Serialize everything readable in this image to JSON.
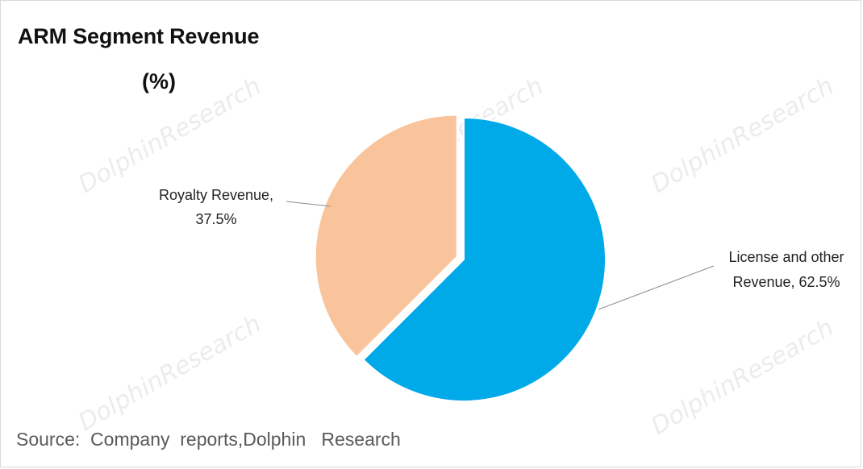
{
  "chart_data": {
    "type": "pie",
    "title": "ARM Segment Revenue",
    "subtitle": "(%)",
    "slices": [
      {
        "label_line1": "License and other",
        "label_line2": "Revenue, 62.5%",
        "value": 62.5,
        "color": "#00a9e8"
      },
      {
        "label_line1": "Royalty Revenue,",
        "label_line2": "37.5%",
        "value": 37.5,
        "color": "#f9c49b"
      }
    ],
    "source": "Source:  Company  reports,Dolphin   Research"
  },
  "watermark": {
    "text": "DolphinResearch"
  }
}
